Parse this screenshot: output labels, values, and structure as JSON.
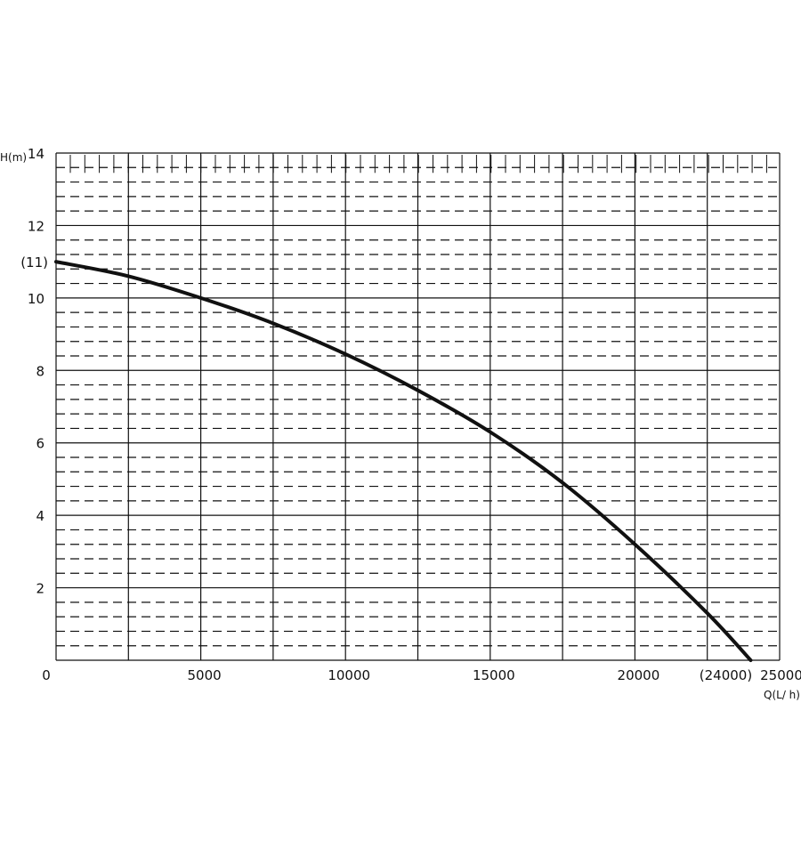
{
  "chart_data": {
    "type": "line",
    "title": "",
    "xlabel": "Q(L/ h)",
    "ylabel": "H(m)",
    "xlim": [
      0,
      25000
    ],
    "ylim": [
      0,
      14
    ],
    "x_ticks": [
      0,
      5000,
      10000,
      15000,
      20000,
      25000
    ],
    "x_tick_labels": [
      "0",
      "5000",
      "10000",
      "15000",
      "20000",
      "25000"
    ],
    "x_extra_label": {
      "value": 24000,
      "label": "(24000)"
    },
    "y_ticks": [
      2,
      4,
      6,
      8,
      10,
      12,
      14
    ],
    "y_tick_labels": [
      "2",
      "4",
      "6",
      "8",
      "10",
      "12",
      "14"
    ],
    "y_extra_label": {
      "value": 11,
      "label": "(11)"
    },
    "grid": {
      "major_x_step": 2500,
      "major_y_step": 2,
      "minor_y_step": 0.4,
      "minor_style": "dashed"
    },
    "line_color": "#111111",
    "series": [
      {
        "x": [
          0,
          2500,
          5000,
          7500,
          10000,
          12500,
          15000,
          17500,
          20000,
          22500,
          24000
        ],
        "y": [
          11,
          10.6,
          10,
          9.3,
          8.45,
          7.45,
          6.3,
          4.9,
          3.2,
          1.3,
          0
        ]
      }
    ]
  }
}
